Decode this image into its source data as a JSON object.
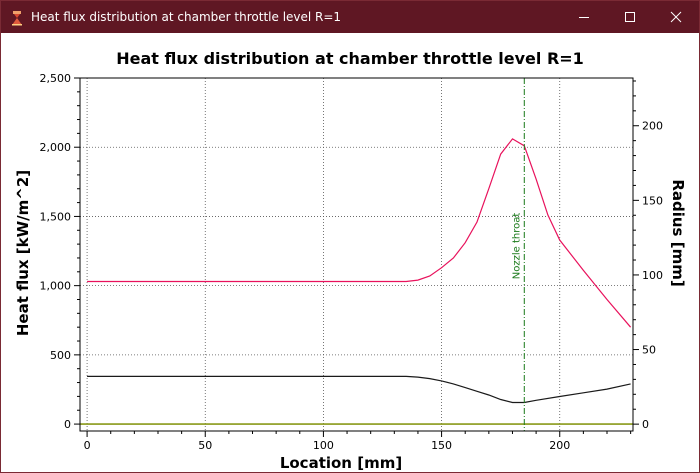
{
  "window": {
    "title": "Heat flux distribution at chamber throttle level R=1",
    "icon": "rocket-engine-icon",
    "controls": [
      "minimize-icon",
      "maximize-icon",
      "close-icon"
    ]
  },
  "chart_data": {
    "type": "line",
    "title": "Heat flux distribution at chamber throttle level R=1",
    "xlabel": "Location [mm]",
    "ylabel": "Heat flux [kW/m^2]",
    "y2label": "Radius [mm]",
    "xlim": [
      -3,
      231
    ],
    "ylim": [
      -50,
      2500
    ],
    "y2lim": [
      -4.6,
      232
    ],
    "x_ticks": [
      0,
      50,
      100,
      150,
      200
    ],
    "x_tick_labels": [
      "0",
      "50",
      "100",
      "150",
      "200"
    ],
    "y_ticks": [
      0,
      500,
      1000,
      1500,
      2000,
      2500
    ],
    "y_tick_labels": [
      "0",
      "500",
      "1,000",
      "1,500",
      "2,000",
      "2,500"
    ],
    "y2_ticks": [
      0,
      50,
      100,
      150,
      200
    ],
    "y2_tick_labels": [
      "0",
      "50",
      "100",
      "150",
      "200"
    ],
    "grid": true,
    "colors": {
      "heat_flux": "#e8125c",
      "radius": "#1a1a1a",
      "zero_line": "#8a9a1a",
      "throat_line": "#1a7a1a"
    },
    "series": [
      {
        "axis": "left",
        "x": [
          0,
          20,
          40,
          60,
          80,
          100,
          120,
          135,
          140,
          145,
          150,
          155,
          160,
          165,
          170,
          175,
          180,
          185,
          190,
          195,
          200,
          210,
          220,
          230
        ],
        "values": [
          1030,
          1030,
          1030,
          1030,
          1030,
          1030,
          1030,
          1030,
          1040,
          1070,
          1130,
          1200,
          1310,
          1460,
          1700,
          1950,
          2060,
          2010,
          1770,
          1510,
          1330,
          1110,
          900,
          700
        ]
      },
      {
        "axis": "right",
        "x": [
          0,
          20,
          40,
          60,
          80,
          100,
          120,
          135,
          140,
          145,
          150,
          155,
          160,
          165,
          170,
          175,
          180,
          185,
          190,
          200,
          210,
          220,
          230
        ],
        "values": [
          32,
          32,
          32,
          32,
          32,
          32,
          32,
          32,
          31.5,
          30.5,
          29,
          27,
          24.5,
          22,
          19.5,
          16.5,
          14.5,
          14.5,
          16,
          18.5,
          21,
          23.5,
          27
        ]
      },
      {
        "axis": "left",
        "x": [
          -3,
          231
        ],
        "values": [
          0,
          0
        ]
      }
    ],
    "annotations": [
      {
        "type": "vline",
        "x": 185,
        "text": "Nozzle throat"
      }
    ]
  }
}
